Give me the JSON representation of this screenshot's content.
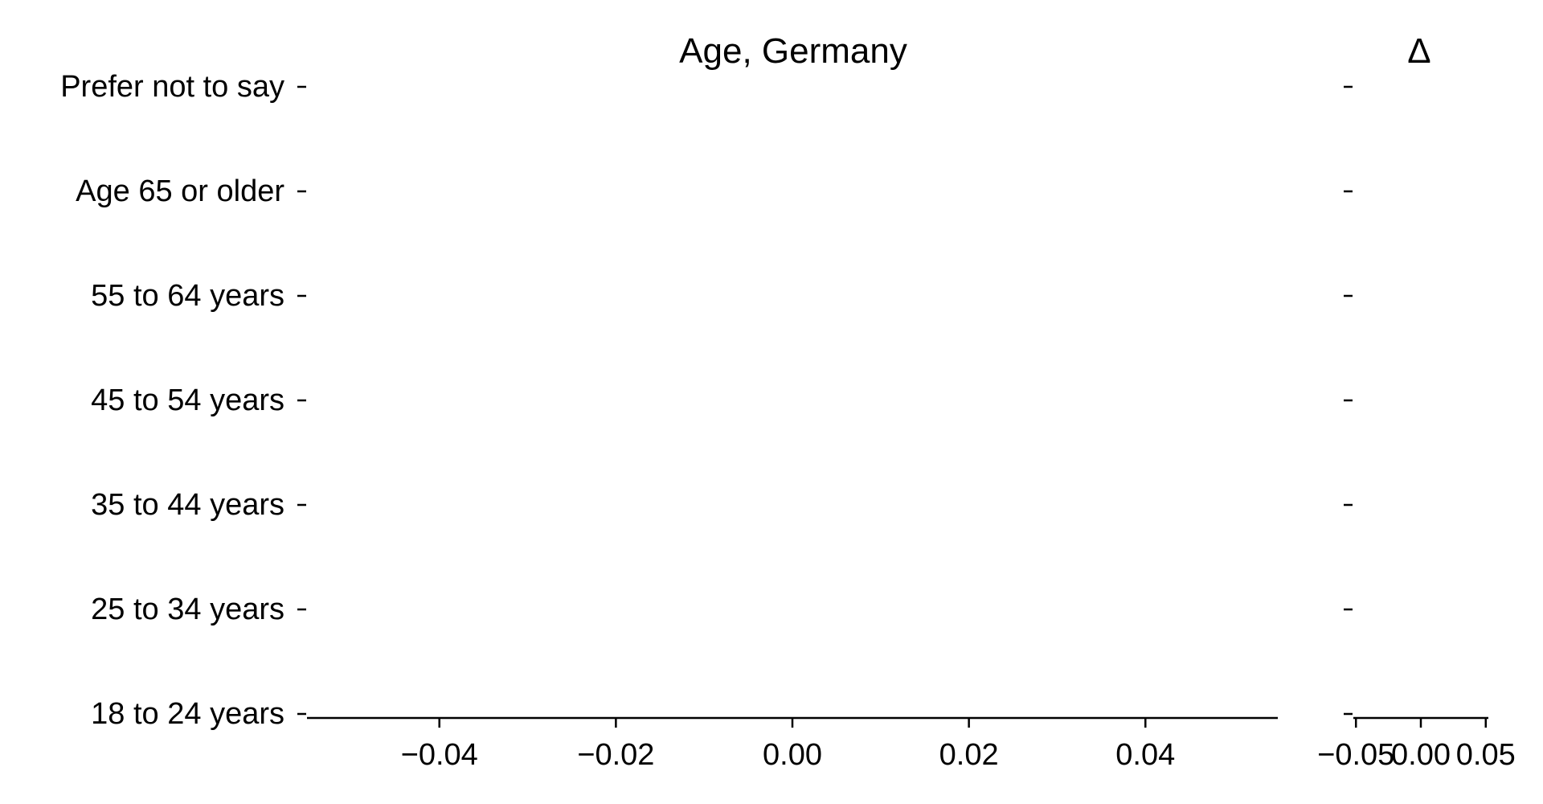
{
  "chart_data": [
    {
      "type": "bar",
      "title": "Age, Germany",
      "xlabel": "",
      "ylabel": "",
      "categories": [
        "Prefer not to say",
        "Age 65 or older",
        "55 to 64 years",
        "45 to 54 years",
        "35 to 44 years",
        "25 to 34 years",
        "18 to 24 years"
      ],
      "series": [],
      "xlim": [
        -0.055,
        0.055
      ],
      "x_ticks": [
        "−0.04",
        "−0.02",
        "0.00",
        "0.02",
        "0.04"
      ],
      "x_tick_values": [
        -0.04,
        -0.02,
        0.0,
        0.02,
        0.04
      ],
      "grid": false
    },
    {
      "type": "bar",
      "title": "Δ",
      "xlabel": "",
      "ylabel": "",
      "categories": [
        "Prefer not to say",
        "Age 65 or older",
        "55 to 64 years",
        "45 to 54 years",
        "35 to 44 years",
        "25 to 34 years",
        "18 to 24 years"
      ],
      "series": [],
      "xlim": [
        -0.052,
        0.052
      ],
      "x_ticks": [
        "−0.05",
        "0.00",
        "0.05"
      ],
      "x_tick_values": [
        -0.05,
        0.0,
        0.05
      ],
      "grid": false
    }
  ]
}
